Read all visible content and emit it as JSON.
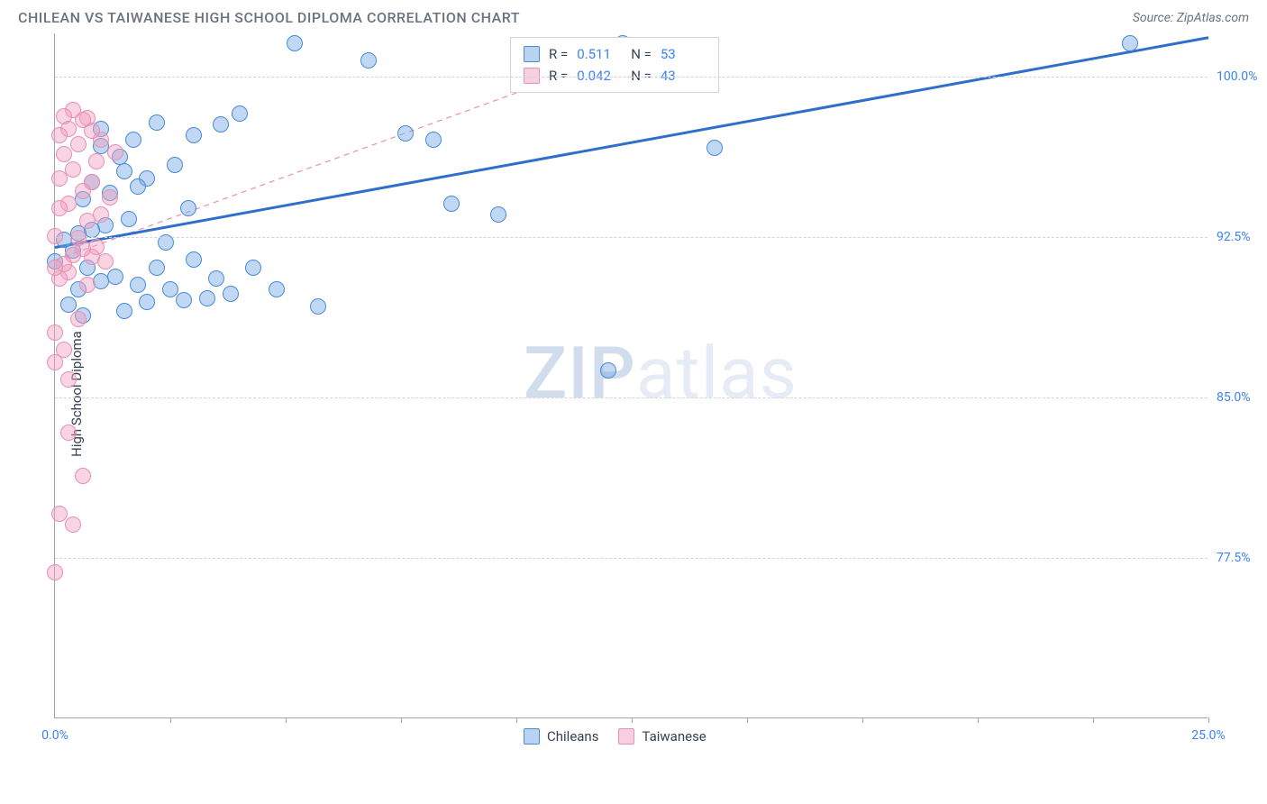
{
  "title": "CHILEAN VS TAIWANESE HIGH SCHOOL DIPLOMA CORRELATION CHART",
  "source": "Source: ZipAtlas.com",
  "y_axis_label": "High School Diploma",
  "watermark": {
    "strong": "ZIP",
    "light": "atlas"
  },
  "chart": {
    "xlim": [
      0,
      25
    ],
    "ylim": [
      70,
      102
    ],
    "y_ticks": [
      {
        "v": 100.0,
        "label": "100.0%"
      },
      {
        "v": 92.5,
        "label": "92.5%"
      },
      {
        "v": 85.0,
        "label": "85.0%"
      },
      {
        "v": 77.5,
        "label": "77.5%"
      }
    ],
    "x_ticks_minor": [
      2.5,
      5.0,
      7.5,
      10.0,
      12.5,
      15.0,
      17.5,
      20.0,
      22.5,
      25.0
    ],
    "x_tick_labels": [
      {
        "v": 0.0,
        "label": "0.0%"
      },
      {
        "v": 25.0,
        "label": "25.0%"
      }
    ],
    "background_color": "#ffffff",
    "grid_color": "#d1d5db",
    "axis_color": "#9ca3af",
    "tick_label_color": "#3b82f6"
  },
  "series": {
    "chileans": {
      "label": "Chileans",
      "color_fill": "rgba(115,169,229,0.45)",
      "color_stroke": "#4a8bd6",
      "marker_r": 9,
      "stats": {
        "R": "0.511",
        "N": "53"
      },
      "trend": {
        "x1": 0.0,
        "y1": 92.0,
        "x2": 25.0,
        "y2": 101.8,
        "width": 3,
        "dash": "solid",
        "color": "#2f6fc9"
      },
      "points": [
        {
          "x": 0.0,
          "y": 91.3
        },
        {
          "x": 0.2,
          "y": 92.3
        },
        {
          "x": 0.3,
          "y": 89.3
        },
        {
          "x": 0.4,
          "y": 91.8
        },
        {
          "x": 0.5,
          "y": 90.0
        },
        {
          "x": 0.5,
          "y": 92.6
        },
        {
          "x": 0.6,
          "y": 88.8
        },
        {
          "x": 0.6,
          "y": 94.2
        },
        {
          "x": 0.7,
          "y": 91.0
        },
        {
          "x": 0.8,
          "y": 95.0
        },
        {
          "x": 0.8,
          "y": 92.8
        },
        {
          "x": 1.0,
          "y": 90.4
        },
        {
          "x": 1.0,
          "y": 96.7
        },
        {
          "x": 1.0,
          "y": 97.5
        },
        {
          "x": 1.1,
          "y": 93.0
        },
        {
          "x": 1.2,
          "y": 94.5
        },
        {
          "x": 1.3,
          "y": 90.6
        },
        {
          "x": 1.4,
          "y": 96.2
        },
        {
          "x": 1.5,
          "y": 89.0
        },
        {
          "x": 1.5,
          "y": 95.5
        },
        {
          "x": 1.6,
          "y": 93.3
        },
        {
          "x": 1.7,
          "y": 97.0
        },
        {
          "x": 1.8,
          "y": 90.2
        },
        {
          "x": 1.8,
          "y": 94.8
        },
        {
          "x": 2.0,
          "y": 89.4
        },
        {
          "x": 2.0,
          "y": 95.2
        },
        {
          "x": 2.2,
          "y": 91.0
        },
        {
          "x": 2.2,
          "y": 97.8
        },
        {
          "x": 2.4,
          "y": 92.2
        },
        {
          "x": 2.5,
          "y": 90.0
        },
        {
          "x": 2.6,
          "y": 95.8
        },
        {
          "x": 2.8,
          "y": 89.5
        },
        {
          "x": 2.9,
          "y": 93.8
        },
        {
          "x": 3.0,
          "y": 97.2
        },
        {
          "x": 3.0,
          "y": 91.4
        },
        {
          "x": 3.3,
          "y": 89.6
        },
        {
          "x": 3.5,
          "y": 90.5
        },
        {
          "x": 3.6,
          "y": 97.7
        },
        {
          "x": 3.8,
          "y": 89.8
        },
        {
          "x": 4.0,
          "y": 98.2
        },
        {
          "x": 4.3,
          "y": 91.0
        },
        {
          "x": 4.8,
          "y": 90.0
        },
        {
          "x": 5.2,
          "y": 101.5
        },
        {
          "x": 5.7,
          "y": 89.2
        },
        {
          "x": 6.8,
          "y": 100.7
        },
        {
          "x": 7.6,
          "y": 97.3
        },
        {
          "x": 8.2,
          "y": 97.0
        },
        {
          "x": 8.6,
          "y": 94.0
        },
        {
          "x": 9.6,
          "y": 93.5
        },
        {
          "x": 12.0,
          "y": 86.2
        },
        {
          "x": 12.3,
          "y": 101.5
        },
        {
          "x": 14.3,
          "y": 96.6
        },
        {
          "x": 23.3,
          "y": 101.5
        }
      ]
    },
    "taiwanese": {
      "label": "Taiwanese",
      "color_fill": "rgba(242,160,190,0.45)",
      "color_stroke": "#e88fb4",
      "marker_r": 9,
      "stats": {
        "R": "0.042",
        "N": "43"
      },
      "trend": {
        "x1": 0.0,
        "y1": 91.4,
        "x2": 13.3,
        "y2": 101.8,
        "width": 1.2,
        "dash": "6 5",
        "color": "#e88fb4"
      },
      "points": [
        {
          "x": 0.0,
          "y": 76.8
        },
        {
          "x": 0.0,
          "y": 86.6
        },
        {
          "x": 0.0,
          "y": 88.0
        },
        {
          "x": 0.0,
          "y": 91.0
        },
        {
          "x": 0.0,
          "y": 92.5
        },
        {
          "x": 0.1,
          "y": 90.5
        },
        {
          "x": 0.1,
          "y": 93.8
        },
        {
          "x": 0.1,
          "y": 95.2
        },
        {
          "x": 0.1,
          "y": 97.2
        },
        {
          "x": 0.1,
          "y": 79.5
        },
        {
          "x": 0.2,
          "y": 87.2
        },
        {
          "x": 0.2,
          "y": 91.2
        },
        {
          "x": 0.2,
          "y": 96.3
        },
        {
          "x": 0.2,
          "y": 98.1
        },
        {
          "x": 0.3,
          "y": 85.8
        },
        {
          "x": 0.3,
          "y": 90.8
        },
        {
          "x": 0.3,
          "y": 94.0
        },
        {
          "x": 0.3,
          "y": 97.5
        },
        {
          "x": 0.3,
          "y": 83.3
        },
        {
          "x": 0.4,
          "y": 91.6
        },
        {
          "x": 0.4,
          "y": 95.6
        },
        {
          "x": 0.4,
          "y": 98.4
        },
        {
          "x": 0.4,
          "y": 79.0
        },
        {
          "x": 0.5,
          "y": 88.6
        },
        {
          "x": 0.5,
          "y": 92.4
        },
        {
          "x": 0.5,
          "y": 96.8
        },
        {
          "x": 0.6,
          "y": 91.9
        },
        {
          "x": 0.6,
          "y": 94.6
        },
        {
          "x": 0.6,
          "y": 97.9
        },
        {
          "x": 0.6,
          "y": 81.3
        },
        {
          "x": 0.7,
          "y": 90.2
        },
        {
          "x": 0.7,
          "y": 93.2
        },
        {
          "x": 0.7,
          "y": 98.0
        },
        {
          "x": 0.8,
          "y": 91.5
        },
        {
          "x": 0.8,
          "y": 95.0
        },
        {
          "x": 0.8,
          "y": 97.4
        },
        {
          "x": 0.9,
          "y": 92.0
        },
        {
          "x": 0.9,
          "y": 96.0
        },
        {
          "x": 1.0,
          "y": 93.5
        },
        {
          "x": 1.0,
          "y": 97.0
        },
        {
          "x": 1.1,
          "y": 91.3
        },
        {
          "x": 1.2,
          "y": 94.3
        },
        {
          "x": 1.3,
          "y": 96.4
        }
      ]
    }
  },
  "legend_bottom": [
    {
      "swatch": "blue",
      "label_key": "series.chileans.label"
    },
    {
      "swatch": "pink",
      "label_key": "series.taiwanese.label"
    }
  ]
}
